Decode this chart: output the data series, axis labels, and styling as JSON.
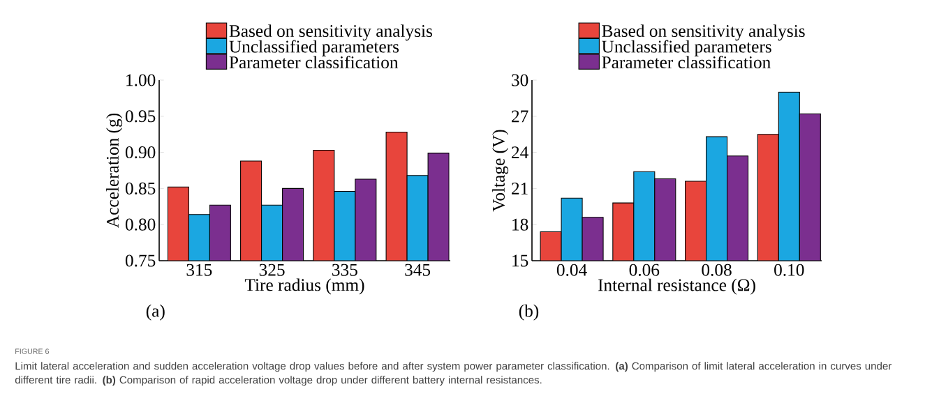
{
  "chart_data": [
    {
      "type": "bar",
      "categories": [
        "315",
        "325",
        "335",
        "345"
      ],
      "xlabel": "Tire radius (mm)",
      "ylabel": "Acceleration (g)",
      "series": [
        {
          "name": "Based on sensitivity analysis",
          "color": "#e8453c",
          "values": [
            0.852,
            0.888,
            0.903,
            0.928
          ]
        },
        {
          "name": "Unclassified parameters",
          "color": "#1ba7e1",
          "values": [
            0.814,
            0.827,
            0.846,
            0.868
          ]
        },
        {
          "name": "Parameter classification",
          "color": "#7b2f8f",
          "values": [
            0.827,
            0.85,
            0.863,
            0.899
          ]
        }
      ],
      "ylim": [
        0.75,
        1.0
      ],
      "yticks": [
        {
          "value": 0.75,
          "label": "0.75"
        },
        {
          "value": 0.8,
          "label": "0.80"
        },
        {
          "value": 0.85,
          "label": "0.85"
        },
        {
          "value": 0.9,
          "label": "0.90"
        },
        {
          "value": 0.95,
          "label": "0.95"
        },
        {
          "value": 1.0,
          "label": "1.00"
        }
      ],
      "legend": "top",
      "annotations": [
        "(a)",
        "FIGURE 6",
        "Limit lateral acceleration and sudden acceleration voltage drop values before and after system power parameter classification. **(a)** Comparison of limit lateral acceleration in curves under different tire radii. **(b)** Comparison of rapid acceleration voltage drop under different battery internal resistances."
      ]
    },
    {
      "type": "bar",
      "categories": [
        "0.04",
        "0.06",
        "0.08",
        "0.10"
      ],
      "xlabel": "Internal resistance (Ω)",
      "ylabel": "Voltage (V)",
      "series": [
        {
          "name": "Based on sensitivity analysis",
          "color": "#e8453c",
          "values": [
            17.4,
            19.8,
            21.6,
            25.5
          ]
        },
        {
          "name": "Unclassified parameters",
          "color": "#1ba7e1",
          "values": [
            20.2,
            22.4,
            25.3,
            29.0
          ]
        },
        {
          "name": "Parameter classification",
          "color": "#7b2f8f",
          "values": [
            18.6,
            21.8,
            23.7,
            27.2
          ]
        }
      ],
      "ylim": [
        15,
        30
      ],
      "yticks": [
        15,
        18,
        21,
        24,
        27,
        30
      ],
      "legend": "top",
      "annotations": [
        "(b)"
      ]
    }
  ]
}
